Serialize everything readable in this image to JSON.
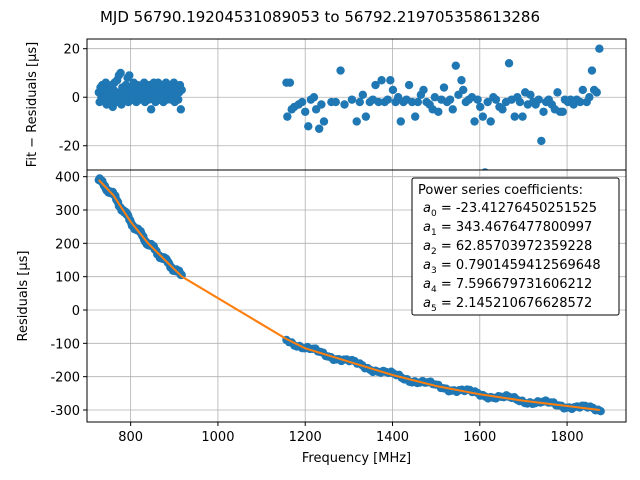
{
  "figure_title": "MJD 56790.19204531089053 to 56792.219705358613286",
  "chart_data": [
    {
      "type": "scatter",
      "name": "residuals-top",
      "ylabel": "Fit − Residuals [μs]",
      "xlabel": "",
      "xlim": [
        700,
        1935
      ],
      "ylim": [
        -30,
        24
      ],
      "yticks": [
        20,
        0,
        -20
      ],
      "xticks": [
        800,
        1000,
        1200,
        1400,
        1600,
        1800
      ],
      "grid": true,
      "marker_color": "#1f77b4",
      "points": [
        [
          727,
          2
        ],
        [
          729,
          -2
        ],
        [
          731,
          4
        ],
        [
          733,
          0
        ],
        [
          735,
          5
        ],
        [
          737,
          -1
        ],
        [
          739,
          3
        ],
        [
          741,
          1
        ],
        [
          743,
          6
        ],
        [
          745,
          -3
        ],
        [
          747,
          2
        ],
        [
          749,
          0
        ],
        [
          751,
          4
        ],
        [
          753,
          -2
        ],
        [
          755,
          1
        ],
        [
          757,
          5
        ],
        [
          759,
          -4
        ],
        [
          761,
          3
        ],
        [
          763,
          6
        ],
        [
          765,
          -1
        ],
        [
          767,
          2
        ],
        [
          769,
          7
        ],
        [
          771,
          -2
        ],
        [
          773,
          9
        ],
        [
          775,
          1
        ],
        [
          777,
          10
        ],
        [
          779,
          -3
        ],
        [
          781,
          4
        ],
        [
          783,
          0
        ],
        [
          785,
          2
        ],
        [
          787,
          -1
        ],
        [
          789,
          5
        ],
        [
          791,
          3
        ],
        [
          793,
          8
        ],
        [
          795,
          -2
        ],
        [
          797,
          9
        ],
        [
          799,
          1
        ],
        [
          801,
          4
        ],
        [
          803,
          -1
        ],
        [
          805,
          2
        ],
        [
          807,
          6
        ],
        [
          809,
          0
        ],
        [
          811,
          3
        ],
        [
          813,
          -2
        ],
        [
          815,
          5
        ],
        [
          817,
          1
        ],
        [
          819,
          4
        ],
        [
          821,
          -1
        ],
        [
          823,
          2
        ],
        [
          825,
          5
        ],
        [
          827,
          0
        ],
        [
          829,
          3
        ],
        [
          831,
          6
        ],
        [
          833,
          -2
        ],
        [
          835,
          2
        ],
        [
          837,
          4
        ],
        [
          839,
          1
        ],
        [
          841,
          -1
        ],
        [
          843,
          5
        ],
        [
          845,
          2
        ],
        [
          847,
          -5
        ],
        [
          849,
          3
        ],
        [
          851,
          0
        ],
        [
          853,
          6
        ],
        [
          855,
          2
        ],
        [
          857,
          -2
        ],
        [
          859,
          4
        ],
        [
          861,
          1
        ],
        [
          863,
          6
        ],
        [
          865,
          -1
        ],
        [
          867,
          3
        ],
        [
          869,
          0
        ],
        [
          871,
          5
        ],
        [
          873,
          2
        ],
        [
          875,
          -2
        ],
        [
          877,
          4
        ],
        [
          879,
          1
        ],
        [
          881,
          6
        ],
        [
          883,
          -1
        ],
        [
          885,
          3
        ],
        [
          887,
          0
        ],
        [
          889,
          5
        ],
        [
          891,
          2
        ],
        [
          893,
          -1
        ],
        [
          895,
          4
        ],
        [
          897,
          1
        ],
        [
          899,
          6
        ],
        [
          901,
          -2
        ],
        [
          903,
          3
        ],
        [
          905,
          0
        ],
        [
          907,
          4
        ],
        [
          909,
          -1
        ],
        [
          911,
          2
        ],
        [
          913,
          5
        ],
        [
          915,
          -5
        ],
        [
          917,
          3
        ],
        [
          1157,
          6
        ],
        [
          1159,
          -8
        ],
        [
          1165,
          6
        ],
        [
          1169,
          -5
        ],
        [
          1175,
          -4
        ],
        [
          1185,
          -3
        ],
        [
          1193,
          -2
        ],
        [
          1200,
          -6
        ],
        [
          1207,
          -12
        ],
        [
          1213,
          -1
        ],
        [
          1220,
          0
        ],
        [
          1225,
          -5
        ],
        [
          1232,
          -13
        ],
        [
          1237,
          -3
        ],
        [
          1243,
          -10
        ],
        [
          1260,
          -2
        ],
        [
          1270,
          -2
        ],
        [
          1281,
          11
        ],
        [
          1290,
          -3
        ],
        [
          1307,
          -1
        ],
        [
          1318,
          -10
        ],
        [
          1325,
          -2
        ],
        [
          1332,
          1
        ],
        [
          1339,
          -8
        ],
        [
          1348,
          -2
        ],
        [
          1355,
          -1
        ],
        [
          1361,
          5
        ],
        [
          1368,
          -2
        ],
        [
          1375,
          7
        ],
        [
          1382,
          -2
        ],
        [
          1389,
          -1
        ],
        [
          1395,
          7
        ],
        [
          1401,
          3
        ],
        [
          1407,
          -2
        ],
        [
          1413,
          0
        ],
        [
          1419,
          -10
        ],
        [
          1425,
          -2
        ],
        [
          1432,
          -1
        ],
        [
          1438,
          5
        ],
        [
          1445,
          -2
        ],
        [
          1452,
          -8
        ],
        [
          1458,
          -2
        ],
        [
          1465,
          1
        ],
        [
          1471,
          3
        ],
        [
          1478,
          -2
        ],
        [
          1485,
          -3
        ],
        [
          1492,
          -5
        ],
        [
          1497,
          0
        ],
        [
          1505,
          -6
        ],
        [
          1512,
          -1
        ],
        [
          1518,
          4
        ],
        [
          1525,
          -2
        ],
        [
          1532,
          -1
        ],
        [
          1538,
          -5
        ],
        [
          1545,
          13
        ],
        [
          1551,
          1
        ],
        [
          1558,
          7
        ],
        [
          1562,
          3
        ],
        [
          1568,
          -2
        ],
        [
          1575,
          -1
        ],
        [
          1582,
          0
        ],
        [
          1588,
          -10
        ],
        [
          1595,
          -1
        ],
        [
          1601,
          -4
        ],
        [
          1607,
          -8
        ],
        [
          1612,
          -31
        ],
        [
          1618,
          -2
        ],
        [
          1625,
          -10
        ],
        [
          1631,
          0
        ],
        [
          1637,
          -1
        ],
        [
          1645,
          -4
        ],
        [
          1652,
          -5
        ],
        [
          1660,
          -2
        ],
        [
          1667,
          14
        ],
        [
          1673,
          -1
        ],
        [
          1680,
          -8
        ],
        [
          1686,
          0
        ],
        [
          1692,
          -2
        ],
        [
          1698,
          -8
        ],
        [
          1704,
          2
        ],
        [
          1710,
          -3
        ],
        [
          1716,
          1
        ],
        [
          1722,
          -2
        ],
        [
          1728,
          -3
        ],
        [
          1735,
          -1
        ],
        [
          1741,
          -18
        ],
        [
          1746,
          -6
        ],
        [
          1752,
          -2
        ],
        [
          1758,
          -1
        ],
        [
          1765,
          -3
        ],
        [
          1772,
          -5
        ],
        [
          1778,
          2
        ],
        [
          1784,
          -6
        ],
        [
          1790,
          -6
        ],
        [
          1795,
          -1
        ],
        [
          1802,
          -2
        ],
        [
          1808,
          -1
        ],
        [
          1815,
          -3
        ],
        [
          1822,
          -1
        ],
        [
          1830,
          -2
        ],
        [
          1836,
          3
        ],
        [
          1845,
          -2
        ],
        [
          1851,
          0
        ],
        [
          1857,
          11
        ],
        [
          1862,
          3
        ],
        [
          1868,
          2
        ],
        [
          1874,
          20
        ]
      ]
    },
    {
      "type": "scatter",
      "name": "residuals-bottom",
      "ylabel": "Residuals [μs]",
      "xlabel": "Frequency [MHz]",
      "xlim": [
        700,
        1935
      ],
      "ylim": [
        -336,
        420
      ],
      "yticks": [
        400,
        300,
        200,
        100,
        0,
        -100,
        -200,
        -300
      ],
      "xticks": [
        800,
        1000,
        1200,
        1400,
        1600,
        1800
      ],
      "grid": true,
      "marker_color": "#1f77b4",
      "fit_color": "#ff7f0e",
      "fit_line": [
        [
          727,
          390
        ],
        [
          760,
          345
        ],
        [
          800,
          265
        ],
        [
          840,
          200
        ],
        [
          880,
          148
        ],
        [
          918,
          100
        ],
        [
          1158,
          -88
        ],
        [
          1200,
          -115
        ],
        [
          1300,
          -155
        ],
        [
          1400,
          -195
        ],
        [
          1500,
          -228
        ],
        [
          1600,
          -253
        ],
        [
          1700,
          -272
        ],
        [
          1800,
          -288
        ],
        [
          1875,
          -300
        ]
      ],
      "legend": {
        "placement": "upper right",
        "title": "Power series coefficients:",
        "lines": [
          {
            "sym": "a",
            "sub": "0",
            "val": " = -23.41276450251525"
          },
          {
            "sym": "a",
            "sub": "1",
            "val": " = 343.4676477800997"
          },
          {
            "sym": "a",
            "sub": "2",
            "val": " = 62.85703972359228"
          },
          {
            "sym": "a",
            "sub": "3",
            "val": " = 0.7901459412569648"
          },
          {
            "sym": "a",
            "sub": "4",
            "val": " = 7.596679731606212"
          },
          {
            "sym": "a",
            "sub": "5",
            "val": " = 2.145210676628572"
          }
        ]
      }
    }
  ]
}
